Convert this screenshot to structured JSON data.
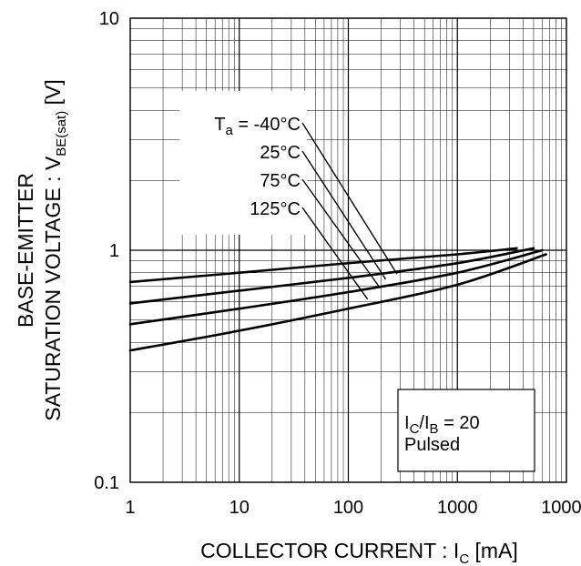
{
  "chart_data": {
    "type": "line",
    "xscale": "log",
    "yscale": "log",
    "xlim": [
      1,
      10000
    ],
    "ylim": [
      0.1,
      10
    ],
    "grid": true,
    "x_ticks": [
      {
        "value": 1,
        "label": "1"
      },
      {
        "value": 10,
        "label": "10"
      },
      {
        "value": 100,
        "label": "100"
      },
      {
        "value": 1000,
        "label": "1000"
      },
      {
        "value": 10000,
        "label": "10000"
      }
    ],
    "y_ticks": [
      {
        "value": 0.1,
        "label": "0.1"
      },
      {
        "value": 1,
        "label": "1"
      },
      {
        "value": 10,
        "label": "10"
      }
    ],
    "xlabel": {
      "main": "COLLECTOR CURRENT : I",
      "sub": "C",
      "unit": " [mA]"
    },
    "ylabel": {
      "line1": "BASE-EMITTER",
      "line2_main": "SATURATION VOLTAGE : V",
      "line2_sub": "BE(sat)",
      "line2_unit": " [V]"
    },
    "legend": {
      "placement": "upper-left",
      "first_prefix": "T",
      "first_prefix_sub": "a",
      "first_equals": " = "
    },
    "series": [
      {
        "name": "-40°C",
        "x": [
          1,
          10,
          100,
          1000,
          3500
        ],
        "y": [
          0.73,
          0.8,
          0.88,
          0.96,
          1.02
        ]
      },
      {
        "name": "25°C",
        "x": [
          1,
          10,
          100,
          1000,
          5000
        ],
        "y": [
          0.59,
          0.67,
          0.76,
          0.88,
          1.02
        ]
      },
      {
        "name": "75°C",
        "x": [
          1,
          10,
          100,
          1000,
          6000
        ],
        "y": [
          0.48,
          0.56,
          0.66,
          0.8,
          1.0
        ]
      },
      {
        "name": "125°C",
        "x": [
          1,
          10,
          100,
          1000,
          6500
        ],
        "y": [
          0.37,
          0.45,
          0.56,
          0.71,
          0.96
        ]
      }
    ],
    "leaders": [
      {
        "series": "-40°C",
        "x": 280,
        "y": 0.79
      },
      {
        "series": "25°C",
        "x": 220,
        "y": 0.75
      },
      {
        "series": "75°C",
        "x": 190,
        "y": 0.7
      },
      {
        "series": "125°C",
        "x": 150,
        "y": 0.615
      }
    ],
    "annotation": {
      "ratio_main": "I",
      "ratio_sub1": "C",
      "ratio_slash": "/I",
      "ratio_sub2": "B",
      "ratio_value": " = 20",
      "mode": "Pulsed"
    }
  }
}
